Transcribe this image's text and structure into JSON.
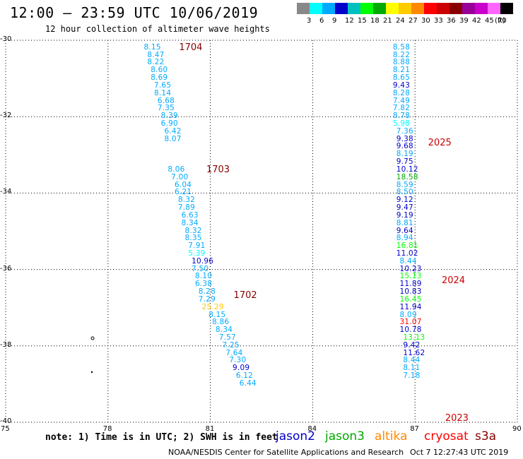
{
  "header": {
    "title": "12:00 – 23:59 UTC 10/06/2019",
    "subtitle": "12 hour collection of altimeter wave heights"
  },
  "legend": {
    "unit": "(ft)",
    "colors": [
      "#888888",
      "#00ffff",
      "#00aaff",
      "#0000cc",
      "#00c0c0",
      "#00ff00",
      "#00aa00",
      "#ffff00",
      "#ffcc00",
      "#ff8800",
      "#ff0000",
      "#cc0000",
      "#880000",
      "#990099",
      "#cc00cc",
      "#ff66ff",
      "#000000"
    ],
    "ticks": [
      "3",
      "6",
      "9",
      "12",
      "15",
      "18",
      "21",
      "24",
      "27",
      "30",
      "33",
      "36",
      "39",
      "42",
      "45",
      "70"
    ]
  },
  "chart_data": {
    "type": "scatter",
    "title": "12:00 – 23:59 UTC 10/06/2019",
    "subtitle": "12 hour collection of altimeter wave heights",
    "xlim": [
      75,
      90
    ],
    "ylim": [
      -40,
      -30
    ],
    "x_ticks": [
      "75",
      "78",
      "81",
      "84",
      "87",
      "90"
    ],
    "y_ticks": [
      "-30",
      "-32",
      "-34",
      "-36",
      "-38",
      "-40"
    ],
    "grid": true,
    "passes": [
      {
        "label": "1704",
        "lat": -30.2,
        "lon": 80.0
      },
      {
        "label": "1703",
        "lat": -33.4,
        "lon": 80.8
      },
      {
        "label": "1702",
        "lat": -36.7,
        "lon": 81.6
      },
      {
        "label": "2025",
        "lat": -32.7,
        "lon": 87.3
      },
      {
        "label": "2024",
        "lat": -36.3,
        "lon": 87.7
      },
      {
        "label": "2023",
        "lat": -39.9,
        "lon": 87.8
      }
    ],
    "series": [
      {
        "name": "track-1",
        "points": [
          {
            "lat": -30.2,
            "lon": 79.3,
            "v": "8.15",
            "c": "#00aaff"
          },
          {
            "lat": -30.4,
            "lon": 79.4,
            "v": "8.47",
            "c": "#00aaff"
          },
          {
            "lat": -30.6,
            "lon": 79.4,
            "v": "8.22",
            "c": "#00aaff"
          },
          {
            "lat": -30.8,
            "lon": 79.5,
            "v": "8.60",
            "c": "#00aaff"
          },
          {
            "lat": -31.0,
            "lon": 79.5,
            "v": "8.69",
            "c": "#00aaff"
          },
          {
            "lat": -31.2,
            "lon": 79.6,
            "v": "7.65",
            "c": "#00aaff"
          },
          {
            "lat": -31.4,
            "lon": 79.6,
            "v": "8.14",
            "c": "#00aaff"
          },
          {
            "lat": -31.6,
            "lon": 79.7,
            "v": "6.68",
            "c": "#00aaff"
          },
          {
            "lat": -31.8,
            "lon": 79.7,
            "v": "7.35",
            "c": "#00aaff"
          },
          {
            "lat": -32.0,
            "lon": 79.8,
            "v": "8.39",
            "c": "#00aaff"
          },
          {
            "lat": -32.2,
            "lon": 79.8,
            "v": "6.90",
            "c": "#00aaff"
          },
          {
            "lat": -32.4,
            "lon": 79.9,
            "v": "6.42",
            "c": "#00aaff"
          },
          {
            "lat": -32.6,
            "lon": 79.9,
            "v": "8.07",
            "c": "#00aaff"
          },
          {
            "lat": -33.4,
            "lon": 80.0,
            "v": "8.06",
            "c": "#00aaff"
          },
          {
            "lat": -33.6,
            "lon": 80.1,
            "v": "7.00",
            "c": "#00aaff"
          },
          {
            "lat": -33.8,
            "lon": 80.2,
            "v": "6.04",
            "c": "#00aaff"
          },
          {
            "lat": -34.0,
            "lon": 80.2,
            "v": "6.21",
            "c": "#00aaff"
          },
          {
            "lat": -34.2,
            "lon": 80.3,
            "v": "8.32",
            "c": "#00aaff"
          },
          {
            "lat": -34.4,
            "lon": 80.3,
            "v": "7.89",
            "c": "#00aaff"
          },
          {
            "lat": -34.6,
            "lon": 80.4,
            "v": "6.63",
            "c": "#00aaff"
          },
          {
            "lat": -34.8,
            "lon": 80.4,
            "v": "8.34",
            "c": "#00aaff"
          },
          {
            "lat": -35.0,
            "lon": 80.5,
            "v": "8.32",
            "c": "#00aaff"
          },
          {
            "lat": -35.2,
            "lon": 80.5,
            "v": "8.35",
            "c": "#00aaff"
          },
          {
            "lat": -35.4,
            "lon": 80.6,
            "v": "7.91",
            "c": "#00aaff"
          },
          {
            "lat": -35.6,
            "lon": 80.6,
            "v": "5.39",
            "c": "#00ffff"
          },
          {
            "lat": -35.8,
            "lon": 80.7,
            "v": "10.96",
            "c": "#0000cc"
          },
          {
            "lat": -36.0,
            "lon": 80.7,
            "v": "7.50",
            "c": "#00aaff"
          },
          {
            "lat": -36.2,
            "lon": 80.8,
            "v": "8.10",
            "c": "#00aaff"
          },
          {
            "lat": -36.4,
            "lon": 80.8,
            "v": "6.38",
            "c": "#00aaff"
          },
          {
            "lat": -36.6,
            "lon": 80.9,
            "v": "8.28",
            "c": "#00aaff"
          },
          {
            "lat": -36.8,
            "lon": 80.9,
            "v": "7.29",
            "c": "#00aaff"
          },
          {
            "lat": -37.0,
            "lon": 81.0,
            "v": "25.29",
            "c": "#ffcc00"
          },
          {
            "lat": -37.2,
            "lon": 81.2,
            "v": "8.15",
            "c": "#00aaff"
          },
          {
            "lat": -37.4,
            "lon": 81.3,
            "v": "8.86",
            "c": "#00aaff"
          },
          {
            "lat": -37.6,
            "lon": 81.4,
            "v": "8.34",
            "c": "#00aaff"
          },
          {
            "lat": -37.8,
            "lon": 81.5,
            "v": "7.57",
            "c": "#00aaff"
          },
          {
            "lat": -38.0,
            "lon": 81.6,
            "v": "7.25",
            "c": "#00aaff"
          },
          {
            "lat": -38.2,
            "lon": 81.7,
            "v": "7.64",
            "c": "#00aaff"
          },
          {
            "lat": -38.4,
            "lon": 81.8,
            "v": "7.30",
            "c": "#00aaff"
          },
          {
            "lat": -38.6,
            "lon": 81.9,
            "v": "9.09",
            "c": "#0000cc"
          },
          {
            "lat": -38.8,
            "lon": 82.0,
            "v": "6.12",
            "c": "#00aaff"
          },
          {
            "lat": -39.0,
            "lon": 82.1,
            "v": "6.44",
            "c": "#00aaff"
          }
        ]
      },
      {
        "name": "track-2",
        "points": [
          {
            "lat": -30.2,
            "lon": 86.6,
            "v": "8.58",
            "c": "#00aaff"
          },
          {
            "lat": -30.4,
            "lon": 86.6,
            "v": "8.22",
            "c": "#00aaff"
          },
          {
            "lat": -30.6,
            "lon": 86.6,
            "v": "8.88",
            "c": "#00aaff"
          },
          {
            "lat": -30.8,
            "lon": 86.6,
            "v": "8.21",
            "c": "#00aaff"
          },
          {
            "lat": -31.0,
            "lon": 86.6,
            "v": "8.65",
            "c": "#00aaff"
          },
          {
            "lat": -31.2,
            "lon": 86.6,
            "v": "9.43",
            "c": "#0000cc"
          },
          {
            "lat": -31.4,
            "lon": 86.6,
            "v": "8.28",
            "c": "#00aaff"
          },
          {
            "lat": -31.6,
            "lon": 86.6,
            "v": "7.49",
            "c": "#00aaff"
          },
          {
            "lat": -31.8,
            "lon": 86.6,
            "v": "7.82",
            "c": "#00aaff"
          },
          {
            "lat": -32.0,
            "lon": 86.6,
            "v": "8.78",
            "c": "#00aaff"
          },
          {
            "lat": -32.2,
            "lon": 86.6,
            "v": "5.98",
            "c": "#00ffff"
          },
          {
            "lat": -32.4,
            "lon": 86.7,
            "v": "7.36",
            "c": "#00aaff"
          },
          {
            "lat": -32.6,
            "lon": 86.7,
            "v": "9.38",
            "c": "#0000cc"
          },
          {
            "lat": -32.8,
            "lon": 86.7,
            "v": "9.68",
            "c": "#0000cc"
          },
          {
            "lat": -33.0,
            "lon": 86.7,
            "v": "8.19",
            "c": "#00aaff"
          },
          {
            "lat": -33.2,
            "lon": 86.7,
            "v": "9.75",
            "c": "#0000cc"
          },
          {
            "lat": -33.4,
            "lon": 86.7,
            "v": "10.12",
            "c": "#0000cc"
          },
          {
            "lat": -33.6,
            "lon": 86.7,
            "v": "18.58",
            "c": "#00aa00"
          },
          {
            "lat": -33.8,
            "lon": 86.7,
            "v": "8.59",
            "c": "#00aaff"
          },
          {
            "lat": -34.0,
            "lon": 86.7,
            "v": "8.50",
            "c": "#00aaff"
          },
          {
            "lat": -34.2,
            "lon": 86.7,
            "v": "9.12",
            "c": "#0000cc"
          },
          {
            "lat": -34.4,
            "lon": 86.7,
            "v": "9.47",
            "c": "#0000cc"
          },
          {
            "lat": -34.6,
            "lon": 86.7,
            "v": "9.19",
            "c": "#0000cc"
          },
          {
            "lat": -34.8,
            "lon": 86.7,
            "v": "8.81",
            "c": "#00aaff"
          },
          {
            "lat": -35.0,
            "lon": 86.7,
            "v": "9.64",
            "c": "#0000cc"
          },
          {
            "lat": -35.2,
            "lon": 86.7,
            "v": "8.94",
            "c": "#00aaff"
          },
          {
            "lat": -35.4,
            "lon": 86.7,
            "v": "16.81",
            "c": "#00ff00"
          },
          {
            "lat": -35.6,
            "lon": 86.7,
            "v": "11.02",
            "c": "#0000cc"
          },
          {
            "lat": -35.8,
            "lon": 86.8,
            "v": "8.44",
            "c": "#00aaff"
          },
          {
            "lat": -36.0,
            "lon": 86.8,
            "v": "10.23",
            "c": "#0000cc"
          },
          {
            "lat": -36.2,
            "lon": 86.8,
            "v": "15.13",
            "c": "#00ff00"
          },
          {
            "lat": -36.4,
            "lon": 86.8,
            "v": "11.89",
            "c": "#0000cc"
          },
          {
            "lat": -36.6,
            "lon": 86.8,
            "v": "10.83",
            "c": "#0000cc"
          },
          {
            "lat": -36.8,
            "lon": 86.8,
            "v": "16.45",
            "c": "#00ff00"
          },
          {
            "lat": -37.0,
            "lon": 86.8,
            "v": "11.94",
            "c": "#0000cc"
          },
          {
            "lat": -37.2,
            "lon": 86.8,
            "v": "8.09",
            "c": "#00aaff"
          },
          {
            "lat": -37.4,
            "lon": 86.8,
            "v": "31.07",
            "c": "#ff0000"
          },
          {
            "lat": -37.6,
            "lon": 86.8,
            "v": "10.78",
            "c": "#0000cc"
          },
          {
            "lat": -37.8,
            "lon": 86.9,
            "v": "13.13",
            "c": "#00ff00"
          },
          {
            "lat": -38.0,
            "lon": 86.9,
            "v": "9.42",
            "c": "#0000cc"
          },
          {
            "lat": -38.2,
            "lon": 86.9,
            "v": "11.62",
            "c": "#0000cc"
          },
          {
            "lat": -38.4,
            "lon": 86.9,
            "v": "8.44",
            "c": "#00aaff"
          },
          {
            "lat": -38.6,
            "lon": 86.9,
            "v": "8.11",
            "c": "#00aaff"
          },
          {
            "lat": -38.8,
            "lon": 86.9,
            "v": "7.18",
            "c": "#00aaff"
          }
        ]
      }
    ]
  },
  "note": "note: 1) Time is in UTC; 2) SWH is in feet",
  "satellites": [
    {
      "name": "jason2",
      "color": "#0000cc"
    },
    {
      "name": "jason3",
      "color": "#00aa00"
    },
    {
      "name": "altika",
      "color": "#ff8800"
    },
    {
      "name": "cryosat",
      "color": "#ff0000"
    },
    {
      "name": "s3a",
      "color": "#880000"
    }
  ],
  "footer": {
    "credit": "NOAA/NESDIS Center for Satellite Applications and Research",
    "timestamp": "Oct  7 12:27:43 UTC 2019"
  }
}
